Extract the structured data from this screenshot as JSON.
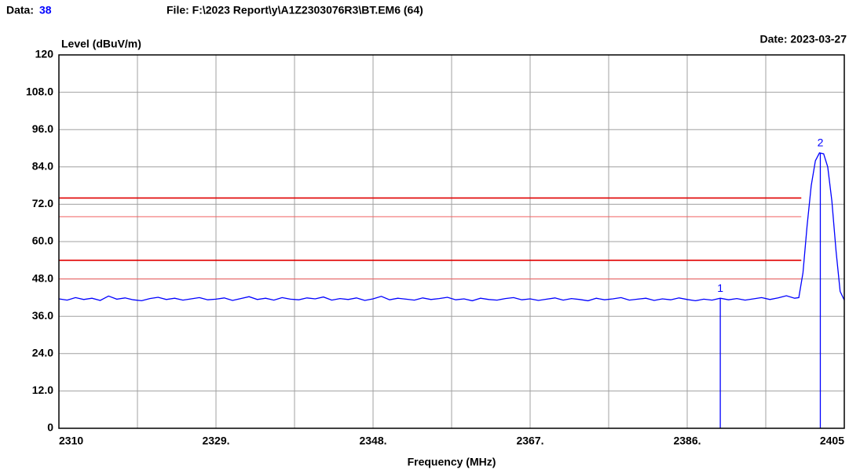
{
  "chart_data": {
    "type": "line",
    "data_label": "Data:",
    "data_number": "38",
    "file": "File: F:\\2023 Report\\y\\A1Z2303076R3\\BT.EM6  (64)",
    "date": "Date: 2023-03-27",
    "ylabel": "Level (dBuV/m)",
    "xlabel": "Frequency (MHz)",
    "xlim": [
      2310,
      2405
    ],
    "ylim": [
      0,
      120
    ],
    "xticks": [
      2310,
      {
        "value": 2329,
        "label": "2329."
      },
      {
        "value": 2348,
        "label": "2348."
      },
      {
        "value": 2367,
        "label": "2367."
      },
      {
        "value": 2386,
        "label": "2386."
      },
      2405
    ],
    "xminor_ticks": [
      2319.5,
      2338.5,
      2357.5,
      2376.5,
      2395.5
    ],
    "yticks": [
      0,
      {
        "value": 12,
        "label": "12.0"
      },
      {
        "value": 24,
        "label": "24.0"
      },
      {
        "value": 36,
        "label": "36.0"
      },
      {
        "value": 48,
        "label": "48.0"
      },
      {
        "value": 60,
        "label": "60.0"
      },
      {
        "value": 72,
        "label": "72.0"
      },
      {
        "value": 84,
        "label": "84.0"
      },
      {
        "value": 96,
        "label": "96.0"
      },
      {
        "value": 108,
        "label": "108.0"
      },
      120
    ],
    "grid": true,
    "limit_lines": [
      {
        "value": 74,
        "color": "#e00000",
        "width": 1.6,
        "x": [
          2310,
          2399.8
        ]
      },
      {
        "value": 68,
        "color": "#f06060",
        "width": 1,
        "x": [
          2310,
          2399.8
        ]
      },
      {
        "value": 54,
        "color": "#e00000",
        "width": 1.6,
        "x": [
          2310,
          2399.8
        ]
      },
      {
        "value": 48,
        "color": "#f06060",
        "width": 1,
        "x": [
          2310,
          2399.8
        ]
      }
    ],
    "trace": {
      "color": "#0000ff",
      "x": [
        2310,
        2311,
        2312,
        2313,
        2314,
        2315,
        2316,
        2317,
        2318,
        2319,
        2320,
        2321,
        2322,
        2323,
        2324,
        2325,
        2326,
        2327,
        2328,
        2329,
        2330,
        2331,
        2332,
        2333,
        2334,
        2335,
        2336,
        2337,
        2338,
        2339,
        2340,
        2341,
        2342,
        2343,
        2344,
        2345,
        2346,
        2347,
        2348,
        2349,
        2350,
        2351,
        2352,
        2353,
        2354,
        2355,
        2356,
        2357,
        2358,
        2359,
        2360,
        2361,
        2362,
        2363,
        2364,
        2365,
        2366,
        2367,
        2368,
        2369,
        2370,
        2371,
        2372,
        2373,
        2374,
        2375,
        2376,
        2377,
        2378,
        2379,
        2380,
        2381,
        2382,
        2383,
        2384,
        2385,
        2386,
        2387,
        2388,
        2389,
        2390,
        2391,
        2392,
        2393,
        2394,
        2395,
        2396,
        2397,
        2398,
        2399,
        2399.5,
        2400,
        2400.5,
        2401,
        2401.5,
        2402,
        2402.5,
        2403,
        2403.5,
        2404,
        2404.5,
        2405
      ],
      "values": [
        41.6,
        41.2,
        42.0,
        41.4,
        41.8,
        41.1,
        42.5,
        41.5,
        41.9,
        41.3,
        41.0,
        41.7,
        42.1,
        41.4,
        41.8,
        41.2,
        41.6,
        42.0,
        41.3,
        41.5,
        41.9,
        41.1,
        41.7,
        42.3,
        41.4,
        41.8,
        41.2,
        42.0,
        41.5,
        41.3,
        41.9,
        41.6,
        42.2,
        41.2,
        41.7,
        41.4,
        41.9,
        41.1,
        41.6,
        42.4,
        41.3,
        41.8,
        41.5,
        41.2,
        41.9,
        41.4,
        41.7,
        42.1,
        41.3,
        41.6,
        41.0,
        41.8,
        41.4,
        41.2,
        41.7,
        42.0,
        41.3,
        41.6,
        41.1,
        41.5,
        41.9,
        41.2,
        41.7,
        41.4,
        41.0,
        41.8,
        41.3,
        41.6,
        42.0,
        41.2,
        41.5,
        41.8,
        41.1,
        41.6,
        41.3,
        41.9,
        41.4,
        41.0,
        41.5,
        41.2,
        41.8,
        41.3,
        41.7,
        41.2,
        41.6,
        42.0,
        41.4,
        41.9,
        42.6,
        41.8,
        42.0,
        50,
        65,
        78,
        86,
        88.5,
        88.2,
        84,
        73,
        57,
        44,
        41.2
      ]
    },
    "markers": [
      {
        "label": "1",
        "x": 2390,
        "y": 41.8
      },
      {
        "label": "2",
        "x": 2402.1,
        "y": 88.5
      }
    ]
  }
}
